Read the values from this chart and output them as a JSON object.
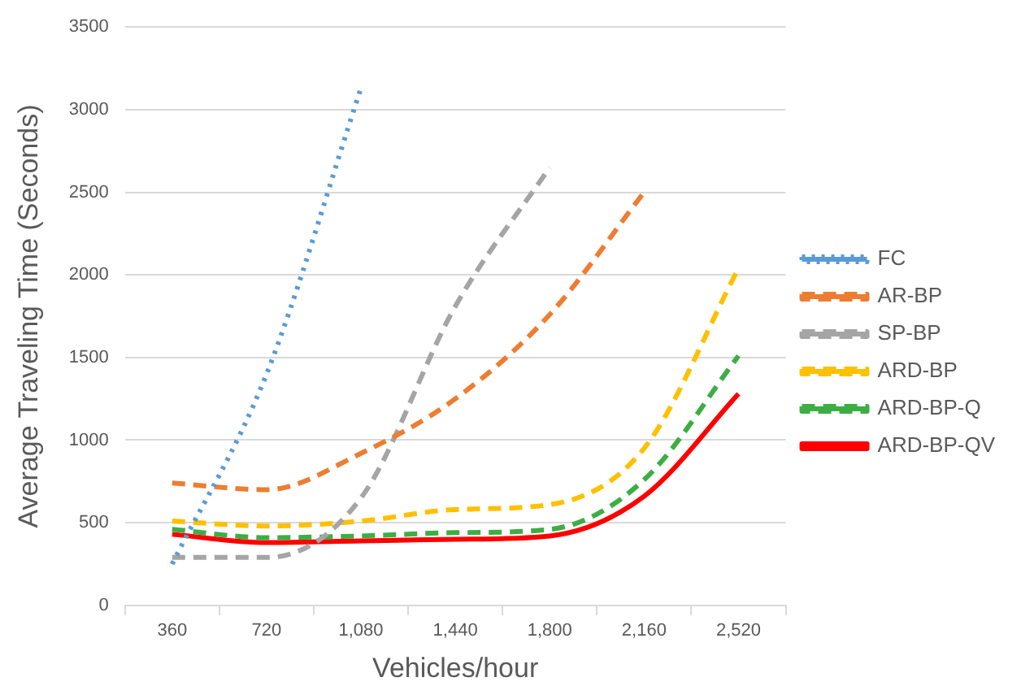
{
  "chart_data": {
    "type": "line",
    "xlabel": "Vehicles/hour",
    "ylabel": "Average Traveling Time (Seconds)",
    "categories": [
      "360",
      "720",
      "1,080",
      "1,440",
      "1,800",
      "2,160",
      "2,520"
    ],
    "series": [
      {
        "name": "FC",
        "color": "#5b9bd5",
        "line_style": "dotted",
        "values": [
          250,
          1400,
          3130,
          null,
          null,
          null,
          null
        ]
      },
      {
        "name": "AR-BP",
        "color": "#ed7d31",
        "line_style": "dashed",
        "values": [
          740,
          700,
          920,
          1250,
          1760,
          2500,
          null
        ]
      },
      {
        "name": "SP-BP",
        "color": "#a5a5a5",
        "line_style": "dashed",
        "values": [
          290,
          290,
          650,
          1810,
          2650,
          null,
          null
        ]
      },
      {
        "name": "ARD-BP",
        "color": "#ffc000",
        "line_style": "dashed",
        "values": [
          510,
          480,
          510,
          580,
          610,
          950,
          2040
        ]
      },
      {
        "name": "ARD-BP-Q",
        "color": "#3cae44",
        "line_style": "dashed",
        "values": [
          460,
          410,
          420,
          440,
          460,
          760,
          1510
        ]
      },
      {
        "name": "ARD-BP-QV",
        "color": "#ff0000",
        "line_style": "solid",
        "values": [
          430,
          380,
          390,
          400,
          420,
          660,
          1280
        ]
      }
    ],
    "ylim": [
      0,
      3500
    ],
    "yticks": [
      0,
      500,
      1000,
      1500,
      2000,
      2500,
      3000,
      3500
    ],
    "grid": "y",
    "legend": "right",
    "marker": "none"
  }
}
